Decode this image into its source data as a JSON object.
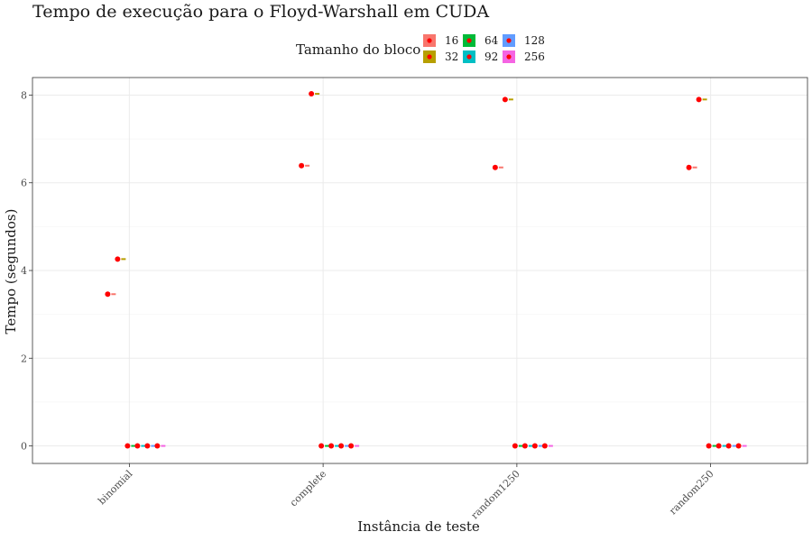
{
  "chart_data": {
    "type": "scatter",
    "title": "Tempo de execução para o Floyd-Warshall em CUDA",
    "xlabel": "Instância de teste",
    "ylabel": "Tempo (segundos)",
    "legend_title": "Tamanho do bloco",
    "legend_placement": "top",
    "categories": [
      "binomial",
      "complete",
      "random1250",
      "random250"
    ],
    "ylim": [
      -0.4,
      8.4
    ],
    "yticks": [
      0,
      2,
      4,
      6,
      8
    ],
    "grid": true,
    "point_color": "#ff0000",
    "series": [
      {
        "name": "16",
        "color": "#f8766d",
        "values": [
          3.46,
          6.39,
          6.35,
          6.35
        ]
      },
      {
        "name": "32",
        "color": "#b79f00",
        "values": [
          4.26,
          8.03,
          7.9,
          7.9
        ]
      },
      {
        "name": "64",
        "color": "#00ba38",
        "values": [
          0.0,
          0.0,
          0.0,
          0.0
        ]
      },
      {
        "name": "92",
        "color": "#00bfc4",
        "values": [
          0.0,
          0.0,
          0.0,
          0.0
        ]
      },
      {
        "name": "128",
        "color": "#619cff",
        "values": [
          0.0,
          0.0,
          0.0,
          0.0
        ]
      },
      {
        "name": "256",
        "color": "#f564e3",
        "values": [
          0.0,
          0.0,
          0.0,
          0.0
        ]
      }
    ]
  }
}
